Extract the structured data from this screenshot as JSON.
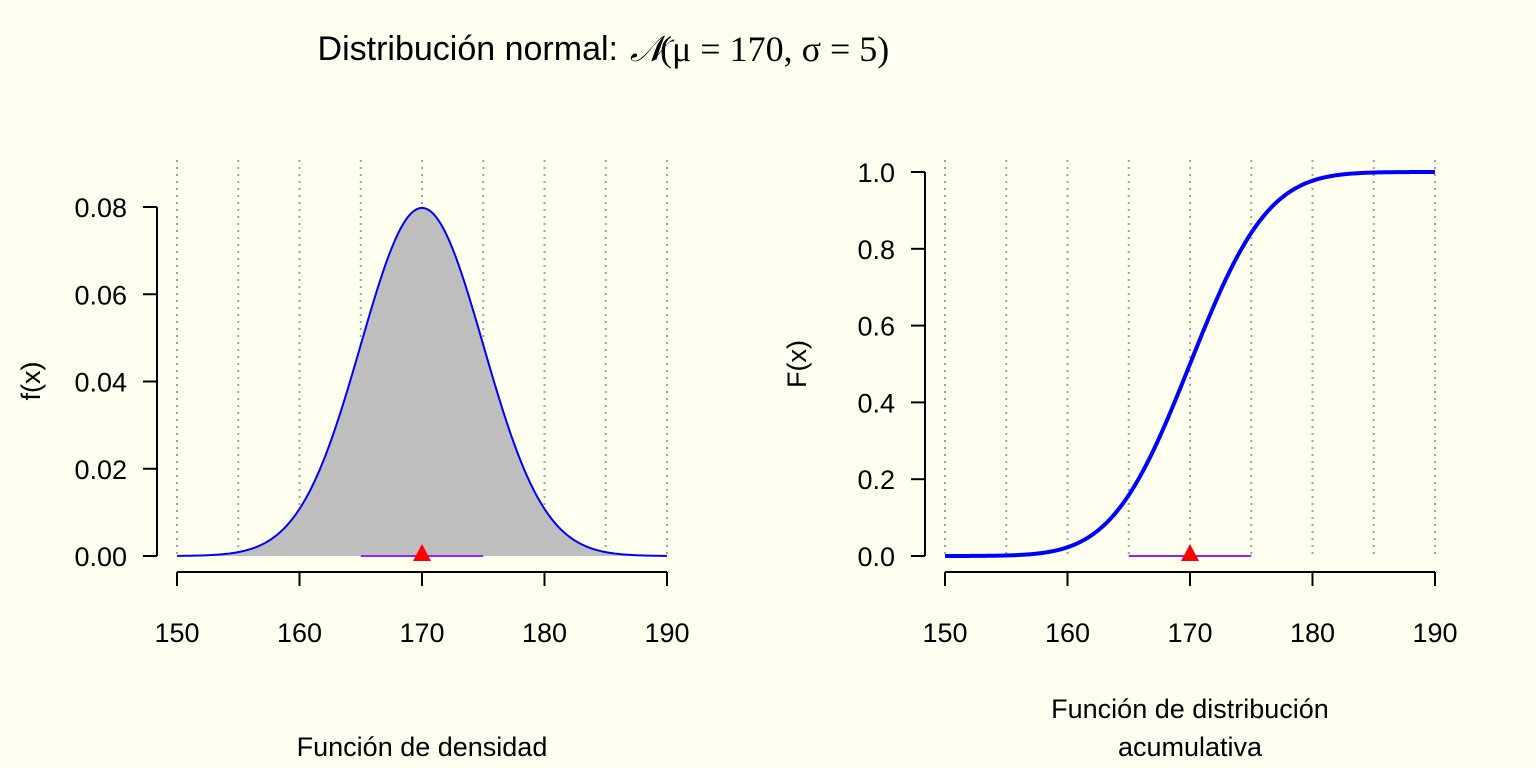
{
  "title": {
    "prefix": "Distribución normal:",
    "dist_symbol": "𝒩",
    "params": "(μ = 170, σ = 5)"
  },
  "colors": {
    "background": "#FFFFF0",
    "curve": "#0000FF",
    "fill": "#BEBEBE",
    "grid": "#A0A0A0",
    "interval": "#A020F0",
    "mean_marker": "#FF0000"
  },
  "chart_data": [
    {
      "type": "area",
      "title": "Función de densidad",
      "xlabel": "Función de densidad",
      "ylabel": "f(x)",
      "mu": 170,
      "sigma": 5,
      "xlim": [
        150,
        190
      ],
      "ylim": [
        0,
        0.08
      ],
      "x_ticks": [
        150,
        160,
        170,
        180,
        190
      ],
      "y_ticks": [
        0.0,
        0.02,
        0.04,
        0.06,
        0.08
      ],
      "y_tick_labels": [
        "0.00",
        "0.02",
        "0.04",
        "0.06",
        "0.08"
      ],
      "grid_x": [
        150,
        155,
        160,
        165,
        170,
        175,
        180,
        185,
        190
      ],
      "grid": "vertical dotted",
      "interval": [
        165,
        175
      ],
      "mean_marker": 170,
      "series": [
        {
          "name": "f(x)",
          "function": "normal_pdf"
        }
      ]
    },
    {
      "type": "line",
      "title": "Función de distribución acumulativa",
      "xlabel_lines": [
        "Función de distribución",
        "acumulativa"
      ],
      "ylabel": "F(x)",
      "mu": 170,
      "sigma": 5,
      "xlim": [
        150,
        190
      ],
      "ylim": [
        0,
        1
      ],
      "x_ticks": [
        150,
        160,
        170,
        180,
        190
      ],
      "y_ticks": [
        0.0,
        0.2,
        0.4,
        0.6,
        0.8,
        1.0
      ],
      "y_tick_labels": [
        "0.0",
        "0.2",
        "0.4",
        "0.6",
        "0.8",
        "1.0"
      ],
      "grid_x": [
        150,
        155,
        160,
        165,
        170,
        175,
        180,
        185,
        190
      ],
      "grid": "vertical dotted",
      "interval": [
        165,
        175
      ],
      "mean_marker": 170,
      "series": [
        {
          "name": "F(x)",
          "function": "normal_cdf"
        }
      ]
    }
  ]
}
